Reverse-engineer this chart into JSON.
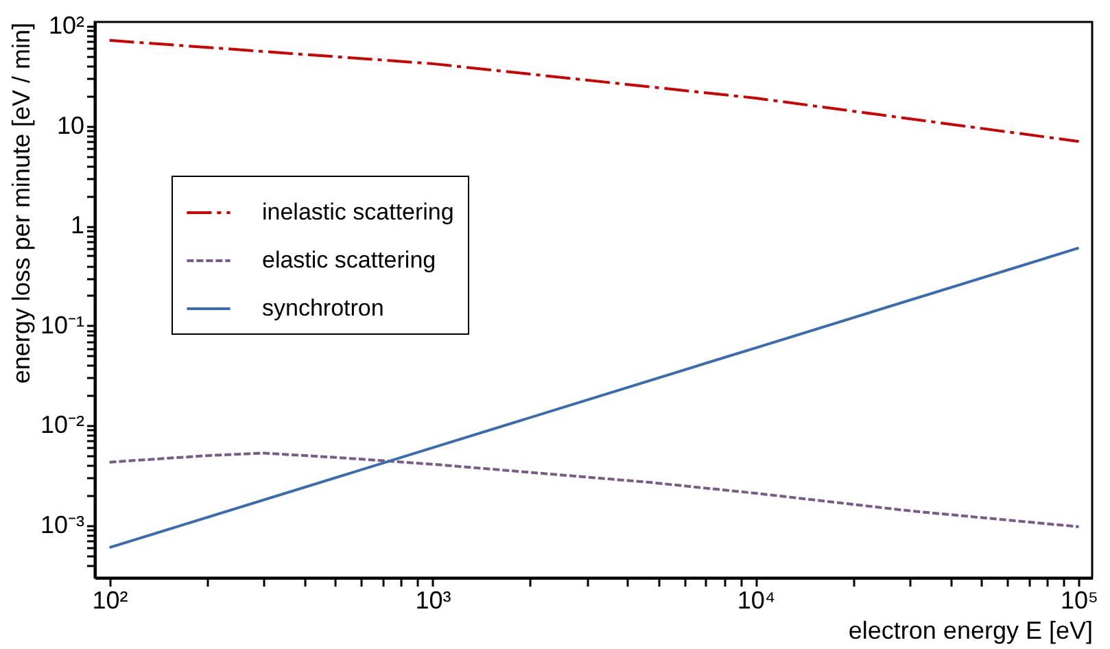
{
  "chart_data": {
    "type": "line",
    "xlabel": "electron energy E [eV]",
    "ylabel": "energy loss per minute [eV / min]",
    "log": "xy",
    "legend": "left",
    "grid": false,
    "xlim": [
      90,
      110000
    ],
    "ylim": [
      0.0003,
      110
    ],
    "xticks": [
      {
        "value": 100,
        "label": "10²"
      },
      {
        "value": 200,
        "label": null
      },
      {
        "value": 300,
        "label": null
      },
      {
        "value": 400,
        "label": null
      },
      {
        "value": 500,
        "label": null
      },
      {
        "value": 600,
        "label": null
      },
      {
        "value": 700,
        "label": null
      },
      {
        "value": 800,
        "label": null
      },
      {
        "value": 900,
        "label": null
      },
      {
        "value": 1000,
        "label": "10³"
      },
      {
        "value": 2000,
        "label": null
      },
      {
        "value": 3000,
        "label": null
      },
      {
        "value": 4000,
        "label": null
      },
      {
        "value": 5000,
        "label": null
      },
      {
        "value": 6000,
        "label": null
      },
      {
        "value": 7000,
        "label": null
      },
      {
        "value": 8000,
        "label": null
      },
      {
        "value": 9000,
        "label": null
      },
      {
        "value": 10000,
        "label": "10⁴"
      },
      {
        "value": 20000,
        "label": null
      },
      {
        "value": 30000,
        "label": null
      },
      {
        "value": 40000,
        "label": null
      },
      {
        "value": 50000,
        "label": null
      },
      {
        "value": 60000,
        "label": null
      },
      {
        "value": 70000,
        "label": null
      },
      {
        "value": 80000,
        "label": null
      },
      {
        "value": 90000,
        "label": null
      },
      {
        "value": 100000,
        "label": "10⁵"
      }
    ],
    "yticks": [
      {
        "value": 0.0004,
        "label": null
      },
      {
        "value": 0.0005,
        "label": null
      },
      {
        "value": 0.0006,
        "label": null
      },
      {
        "value": 0.0007,
        "label": null
      },
      {
        "value": 0.0008,
        "label": null
      },
      {
        "value": 0.0009,
        "label": null
      },
      {
        "value": 0.001,
        "label": "10⁻³"
      },
      {
        "value": 0.002,
        "label": null
      },
      {
        "value": 0.003,
        "label": null
      },
      {
        "value": 0.004,
        "label": null
      },
      {
        "value": 0.005,
        "label": null
      },
      {
        "value": 0.006,
        "label": null
      },
      {
        "value": 0.007,
        "label": null
      },
      {
        "value": 0.008,
        "label": null
      },
      {
        "value": 0.009,
        "label": null
      },
      {
        "value": 0.01,
        "label": "10⁻²"
      },
      {
        "value": 0.02,
        "label": null
      },
      {
        "value": 0.03,
        "label": null
      },
      {
        "value": 0.04,
        "label": null
      },
      {
        "value": 0.05,
        "label": null
      },
      {
        "value": 0.06,
        "label": null
      },
      {
        "value": 0.07,
        "label": null
      },
      {
        "value": 0.08,
        "label": null
      },
      {
        "value": 0.09,
        "label": null
      },
      {
        "value": 0.1,
        "label": "10⁻¹"
      },
      {
        "value": 0.2,
        "label": null
      },
      {
        "value": 0.3,
        "label": null
      },
      {
        "value": 0.4,
        "label": null
      },
      {
        "value": 0.5,
        "label": null
      },
      {
        "value": 0.6,
        "label": null
      },
      {
        "value": 0.7,
        "label": null
      },
      {
        "value": 0.8,
        "label": null
      },
      {
        "value": 0.9,
        "label": null
      },
      1,
      {
        "value": 2,
        "label": null
      },
      {
        "value": 3,
        "label": null
      },
      {
        "value": 4,
        "label": null
      },
      {
        "value": 5,
        "label": null
      },
      {
        "value": 6,
        "label": null
      },
      {
        "value": 7,
        "label": null
      },
      {
        "value": 8,
        "label": null
      },
      {
        "value": 9,
        "label": null
      },
      10,
      {
        "value": 20,
        "label": null
      },
      {
        "value": 30,
        "label": null
      },
      {
        "value": 40,
        "label": null
      },
      {
        "value": 50,
        "label": null
      },
      {
        "value": 60,
        "label": null
      },
      {
        "value": 70,
        "label": null
      },
      {
        "value": 80,
        "label": null
      },
      {
        "value": 90,
        "label": null
      },
      {
        "value": 100,
        "label": "10²"
      }
    ],
    "series": [
      {
        "name": "inelastic scattering",
        "color": "#cc0000",
        "line_style": "dashed",
        "x": [
          100,
          1000,
          10000,
          100000
        ],
        "values": [
          72,
          42,
          19,
          7
        ]
      },
      {
        "name": "elastic scattering",
        "color": "#7a5a86",
        "line_style": "dotted",
        "x": [
          100,
          200,
          300,
          500,
          1000,
          2000,
          4700,
          10000,
          30000,
          100000
        ],
        "values": [
          0.0043,
          0.005,
          0.0053,
          0.0048,
          0.0041,
          0.0034,
          0.0027,
          0.0021,
          0.0014,
          0.00097
        ]
      },
      {
        "name": "synchrotron",
        "color": "#3b6cb0",
        "line_style": "solid",
        "x": [
          100,
          1000,
          10000,
          100000
        ],
        "values": [
          0.0006,
          0.006,
          0.06,
          0.6
        ]
      }
    ]
  }
}
